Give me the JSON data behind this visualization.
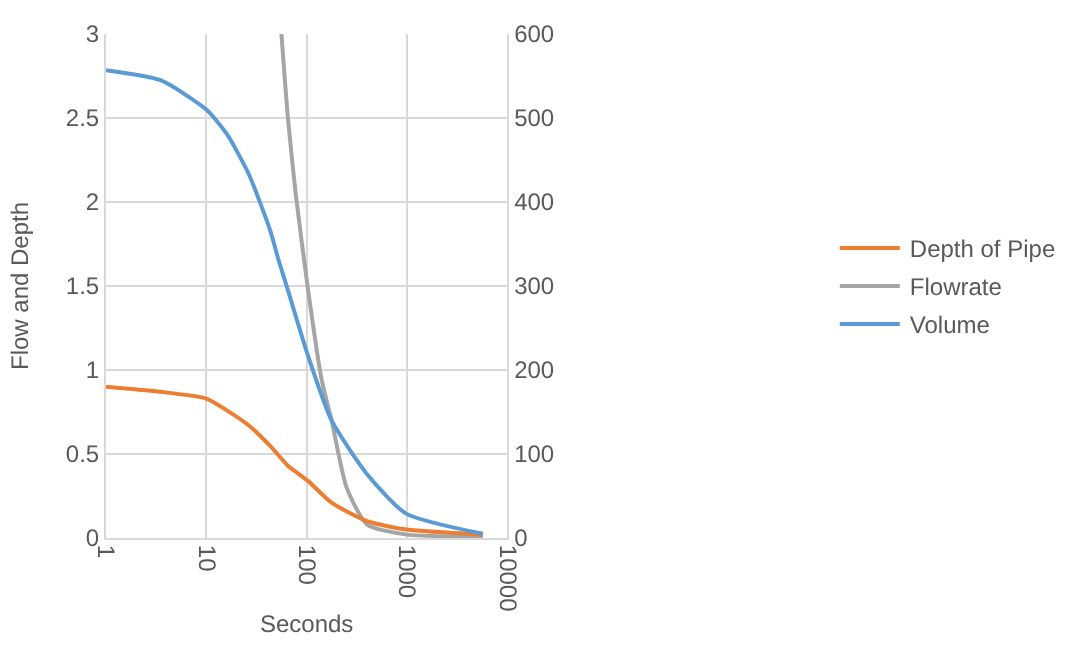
{
  "chart_data": {
    "type": "line",
    "xlabel": "Seconds",
    "ylabel": "Flow and Depth",
    "log": "x",
    "grid": true,
    "legend": "right",
    "marker": "none",
    "line_style": "solid",
    "xlim": [
      1,
      10000
    ],
    "xticks": [
      1,
      10,
      100,
      1000,
      10000
    ],
    "ylim": [
      0,
      3
    ],
    "yticks": [
      0,
      0.5,
      1,
      1.5,
      2,
      2.5,
      3
    ],
    "y2lim": [
      0,
      600
    ],
    "y2ticks": [
      0,
      100,
      200,
      300,
      400,
      500,
      600
    ],
    "series": [
      {
        "name": "Depth of Pipe",
        "color": "#ed7d31",
        "x": [
          1,
          3.5,
          10,
          16,
          26.5,
          43,
          65,
          103,
          177,
          400,
          1000,
          5700
        ],
        "values": [
          0.9,
          0.87,
          0.83,
          0.76,
          0.67,
          0.55,
          0.43,
          0.34,
          0.21,
          0.1,
          0.05,
          0.02
        ]
      },
      {
        "name": "Flowrate",
        "color": "#a5a5a5",
        "x": [
          56,
          65,
          78,
          103,
          140,
          177,
          250,
          400,
          1000,
          5700
        ],
        "values": [
          3.0,
          2.5,
          2.04,
          1.48,
          0.95,
          0.7,
          0.3,
          0.08,
          0.02,
          0.01
        ]
      },
      {
        "name": "Volume",
        "color": "#5b9bd5",
        "axis": "y2",
        "x": [
          1,
          3.5,
          10,
          16,
          26.5,
          43,
          53,
          65,
          103,
          177,
          400,
          980,
          5700
        ],
        "values": [
          557,
          545,
          510,
          481,
          433,
          367,
          329,
          295,
          217,
          140,
          76,
          29,
          5
        ]
      }
    ]
  }
}
